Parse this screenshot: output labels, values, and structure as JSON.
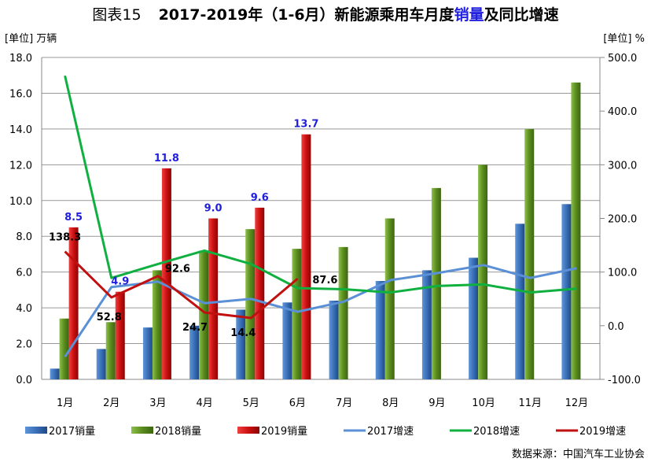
{
  "title": {
    "prefix": "图表15",
    "main": "2017-2019年（1-6月）新能源乘用车月度",
    "highlight": "销量",
    "suffix": "及同比增速"
  },
  "source": "数据来源：中国汽车工业协会",
  "chart_data": {
    "type": "bar+line",
    "left_unit": "[单位] 万辆",
    "right_unit": "[单位] %",
    "categories": [
      "1月",
      "2月",
      "3月",
      "4月",
      "5月",
      "6月",
      "7月",
      "8月",
      "9月",
      "10月",
      "11月",
      "12月"
    ],
    "y_left": {
      "range": [
        0,
        18
      ],
      "ticks": [
        "0.0",
        "2.0",
        "4.0",
        "6.0",
        "8.0",
        "10.0",
        "12.0",
        "14.0",
        "16.0",
        "18.0"
      ]
    },
    "y_right": {
      "range": [
        -100,
        500
      ],
      "ticks": [
        "-100.0",
        "0.0",
        "100.0",
        "200.0",
        "300.0",
        "400.0",
        "500.0"
      ]
    },
    "grid": true,
    "legend_placement": "bottom",
    "bar_series": [
      {
        "name": "2017销量",
        "color": "#3a6fb8",
        "values": [
          0.6,
          1.7,
          2.9,
          3.0,
          3.9,
          4.3,
          4.4,
          5.5,
          6.1,
          6.8,
          8.7,
          9.8
        ]
      },
      {
        "name": "2018销量",
        "color": "#5a8c1e",
        "values": [
          3.4,
          3.2,
          6.1,
          7.2,
          8.4,
          7.3,
          7.4,
          9.0,
          10.7,
          12.0,
          14.0,
          16.6
        ]
      },
      {
        "name": "2019销量",
        "color": "#cc1010",
        "values": [
          8.5,
          4.9,
          11.8,
          9.0,
          9.6,
          13.7
        ],
        "labels": [
          "8.5",
          "4.9",
          "11.8",
          "9.0",
          "9.6",
          "13.7"
        ],
        "label_color": "#1f1fdd"
      }
    ],
    "line_series": [
      {
        "name": "2017增速",
        "color": "#5b8fd6",
        "values": [
          -58,
          72,
          82,
          42,
          50,
          26,
          45,
          85,
          98,
          113,
          89,
          107
        ]
      },
      {
        "name": "2018增速",
        "color": "#10b040",
        "values": [
          466,
          89,
          115,
          140,
          115,
          70,
          68,
          62,
          74,
          77,
          62,
          69
        ]
      },
      {
        "name": "2019增速",
        "color": "#c01010",
        "values": [
          138.3,
          52.8,
          92.6,
          24.7,
          14.4,
          87.6
        ],
        "labels": [
          "138.3",
          "52.8",
          "92.6",
          "24.7",
          "14.4",
          "87.6"
        ]
      }
    ]
  }
}
